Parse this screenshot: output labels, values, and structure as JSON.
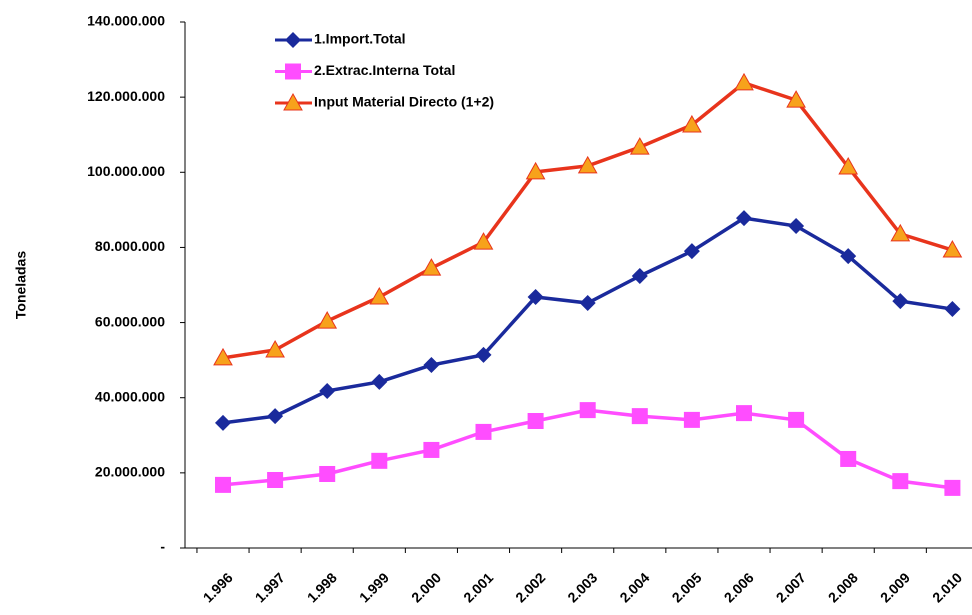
{
  "chart_data": {
    "type": "line",
    "y_label": "Toneladas",
    "categories": [
      "1.996",
      "1.997",
      "1.998",
      "1.999",
      "2.000",
      "2.001",
      "2.002",
      "2.003",
      "2.004",
      "2.005",
      "2.006",
      "2.007",
      "2.008",
      "2.009",
      "2.010"
    ],
    "ylim": [
      0,
      140000000
    ],
    "yticks": [
      {
        "value": 0,
        "label": "-"
      },
      {
        "value": 20000000,
        "label": "20.000.000"
      },
      {
        "value": 40000000,
        "label": "40.000.000"
      },
      {
        "value": 60000000,
        "label": "60.000.000"
      },
      {
        "value": 80000000,
        "label": "80.000.000"
      },
      {
        "value": 100000000,
        "label": "100.000.000"
      },
      {
        "value": 120000000,
        "label": "120.000.000"
      },
      {
        "value": 140000000,
        "label": "140.000.000"
      }
    ],
    "series": [
      {
        "name": "1.Import.Total",
        "color": "#1a2a9c",
        "marker": "diamond",
        "marker_color": "#1a2a9c",
        "values": [
          33300000,
          35100000,
          41800000,
          44200000,
          48700000,
          51400000,
          66800000,
          65200000,
          72400000,
          79000000,
          87800000,
          85700000,
          77700000,
          65700000,
          63600000
        ]
      },
      {
        "name": "2.Extrac.Interna Total",
        "color": "#ff4dff",
        "marker": "square",
        "marker_color": "#ff4dff",
        "values": [
          16800000,
          18100000,
          19700000,
          23200000,
          26100000,
          30900000,
          33800000,
          36700000,
          35100000,
          34100000,
          35900000,
          34100000,
          23700000,
          17800000,
          16000000
        ]
      },
      {
        "name": "Input Material Directo (1+2)",
        "color": "#e8341c",
        "marker": "triangle",
        "marker_color": "#f7a21b",
        "values": [
          50600000,
          52700000,
          60400000,
          66800000,
          74500000,
          81400000,
          100100000,
          101700000,
          106700000,
          112600000,
          123800000,
          119200000,
          101400000,
          83600000,
          79300000
        ]
      }
    ]
  }
}
